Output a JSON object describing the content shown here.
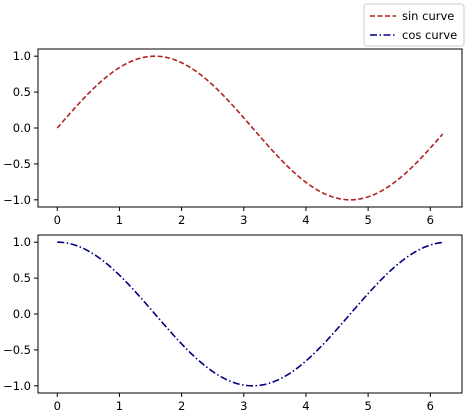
{
  "chart_data": [
    {
      "type": "line",
      "legend_placement": "upper-right",
      "grid": false,
      "xlim": [
        -0.31,
        6.51
      ],
      "ylim": [
        -1.1,
        1.1
      ],
      "xticks": [
        0,
        1,
        2,
        3,
        4,
        5,
        6
      ],
      "xtick_labels": [
        "0",
        "1",
        "2",
        "3",
        "4",
        "5",
        "6"
      ],
      "yticks": [
        1.0,
        0.5,
        0.0,
        -0.5,
        -1.0
      ],
      "ytick_labels": [
        "1.0",
        "0.5",
        "0.0",
        "−0.5",
        "−1.0"
      ],
      "series": [
        {
          "name": "sin curve",
          "color": "#b22222",
          "dash": "dashed",
          "function": "sin",
          "x_range": [
            0,
            6.2
          ],
          "x": [
            0.0,
            0.5,
            1.0,
            1.57,
            2.0,
            2.5,
            3.0,
            3.5,
            4.0,
            4.71,
            5.0,
            5.5,
            6.0,
            6.2
          ],
          "values": [
            0.0,
            0.48,
            0.84,
            1.0,
            0.91,
            0.6,
            0.14,
            -0.35,
            -0.76,
            -1.0,
            -0.96,
            -0.71,
            -0.28,
            -0.08
          ]
        }
      ]
    },
    {
      "type": "line",
      "grid": false,
      "xlim": [
        -0.31,
        6.51
      ],
      "ylim": [
        -1.1,
        1.1
      ],
      "xticks": [
        0,
        1,
        2,
        3,
        4,
        5,
        6
      ],
      "xtick_labels": [
        "0",
        "1",
        "2",
        "3",
        "4",
        "5",
        "6"
      ],
      "yticks": [
        1.0,
        0.5,
        0.0,
        -0.5,
        -1.0
      ],
      "ytick_labels": [
        "1.0",
        "0.5",
        "0.0",
        "−0.5",
        "−1.0"
      ],
      "series": [
        {
          "name": "cos curve",
          "color": "#000080",
          "dash": "dashdot",
          "function": "cos",
          "x_range": [
            0,
            6.2
          ],
          "x": [
            0.0,
            0.5,
            1.0,
            1.5,
            2.0,
            2.5,
            3.0,
            3.14,
            3.5,
            4.0,
            4.5,
            5.0,
            5.5,
            6.0,
            6.2
          ],
          "values": [
            1.0,
            0.88,
            0.54,
            0.07,
            -0.42,
            -0.8,
            -0.99,
            -1.0,
            -0.94,
            -0.65,
            -0.21,
            0.28,
            0.71,
            0.96,
            1.0
          ]
        }
      ]
    }
  ]
}
